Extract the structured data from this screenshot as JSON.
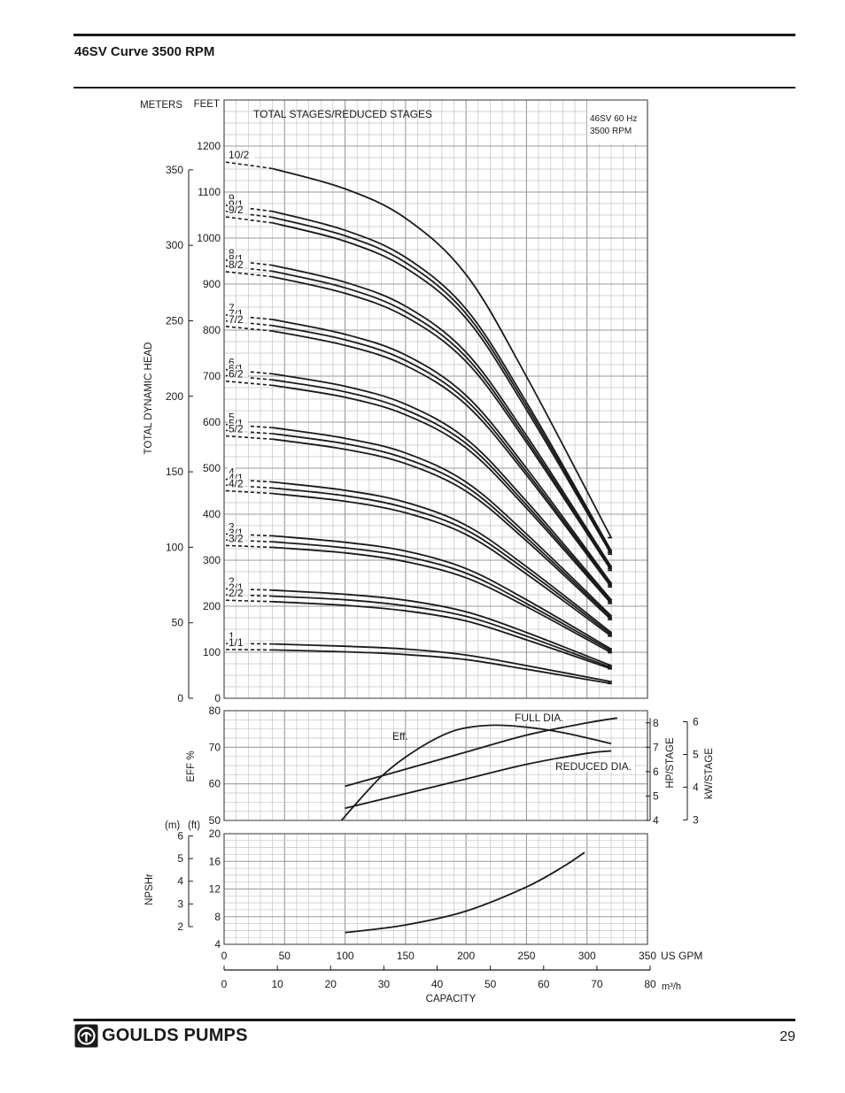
{
  "page": {
    "title": "46SV Curve 3500 RPM",
    "page_number": "29",
    "brand": "GOULDS PUMPS"
  },
  "chart_data": [
    {
      "name": "head",
      "type": "line",
      "title_box": [
        "46SV  60 Hz",
        "3500 RPM"
      ],
      "legend_title": "TOTAL STAGES/REDUCED STAGES",
      "ylabel": "TOTAL DYNAMIC HEAD",
      "unit_left": "METERS",
      "unit_right": "FEET",
      "ft_range": [
        0,
        1300
      ],
      "ft_ticks": [
        "0",
        "100",
        "200",
        "300",
        "400",
        "500",
        "600",
        "700",
        "800",
        "900",
        "1000",
        "1100",
        "1200"
      ],
      "m_ticks": [
        "0",
        "50",
        "100",
        "150",
        "200",
        "250",
        "300",
        "350"
      ],
      "grid": true,
      "shutoff_ft_per_stage": 119,
      "reduced_drop_ft": [
        13,
        25
      ],
      "curve_x_gpm": [
        40,
        100,
        150,
        200,
        250,
        320
      ],
      "curve_fraction_of_shutoff": [
        0.988,
        0.95,
        0.895,
        0.79,
        0.6,
        0.3
      ],
      "series": [
        {
          "label": "1",
          "stages": 1,
          "reduced": 0,
          "x": [
            40,
            100,
            150,
            200,
            250,
            320
          ],
          "y": [
            118,
            113,
            107,
            94,
            71,
            36
          ]
        },
        {
          "label": "1/1",
          "stages": 1,
          "reduced": 1,
          "x": [
            40,
            100,
            150,
            200,
            250,
            320
          ],
          "y": [
            105,
            101,
            95,
            84,
            63,
            32
          ]
        },
        {
          "label": "2",
          "stages": 2,
          "reduced": 0,
          "x": [
            40,
            100,
            150,
            200,
            250,
            320
          ],
          "y": [
            235,
            226,
            213,
            188,
            143,
            71
          ]
        },
        {
          "label": "2/1",
          "stages": 2,
          "reduced": 1,
          "x": [
            40,
            100,
            150,
            200,
            250,
            320
          ],
          "y": [
            222,
            214,
            201,
            178,
            135,
            67
          ]
        },
        {
          "label": "2/2",
          "stages": 2,
          "reduced": 2,
          "x": [
            40,
            100,
            150,
            200,
            250,
            320
          ],
          "y": [
            210,
            202,
            190,
            168,
            127,
            64
          ]
        },
        {
          "label": "3",
          "stages": 3,
          "reduced": 0,
          "x": [
            40,
            100,
            150,
            200,
            250,
            320
          ],
          "y": [
            353,
            339,
            320,
            282,
            214,
            107
          ]
        },
        {
          "label": "3/1",
          "stages": 3,
          "reduced": 1,
          "x": [
            40,
            100,
            150,
            200,
            250,
            320
          ],
          "y": [
            340,
            327,
            308,
            272,
            206,
            103
          ]
        },
        {
          "label": "3/2",
          "stages": 3,
          "reduced": 2,
          "x": [
            40,
            100,
            150,
            200,
            250,
            320
          ],
          "y": [
            328,
            316,
            297,
            262,
            199,
            99
          ]
        },
        {
          "label": "4",
          "stages": 4,
          "reduced": 0,
          "x": [
            40,
            100,
            150,
            200,
            250,
            320
          ],
          "y": [
            470,
            452,
            426,
            376,
            286,
            143
          ]
        },
        {
          "label": "4/1",
          "stages": 4,
          "reduced": 1,
          "x": [
            40,
            100,
            150,
            200,
            250,
            320
          ],
          "y": [
            457,
            440,
            414,
            366,
            278,
            139
          ]
        },
        {
          "label": "4/2",
          "stages": 4,
          "reduced": 2,
          "x": [
            40,
            100,
            150,
            200,
            250,
            320
          ],
          "y": [
            445,
            428,
            403,
            356,
            270,
            135
          ]
        },
        {
          "label": "5",
          "stages": 5,
          "reduced": 0,
          "x": [
            40,
            100,
            150,
            200,
            250,
            320
          ],
          "y": [
            588,
            565,
            533,
            470,
            357,
            179
          ]
        },
        {
          "label": "5/1",
          "stages": 5,
          "reduced": 1,
          "x": [
            40,
            100,
            150,
            200,
            250,
            320
          ],
          "y": [
            575,
            553,
            521,
            460,
            349,
            175
          ]
        },
        {
          "label": "5/2",
          "stages": 5,
          "reduced": 2,
          "x": [
            40,
            100,
            150,
            200,
            250,
            320
          ],
          "y": [
            563,
            541,
            510,
            450,
            342,
            171
          ]
        },
        {
          "label": "6",
          "stages": 6,
          "reduced": 0,
          "x": [
            40,
            100,
            150,
            200,
            250,
            320
          ],
          "y": [
            705,
            678,
            639,
            564,
            428,
            214
          ]
        },
        {
          "label": "6/1",
          "stages": 6,
          "reduced": 1,
          "x": [
            40,
            100,
            150,
            200,
            250,
            320
          ],
          "y": [
            692,
            666,
            627,
            554,
            420,
            210
          ]
        },
        {
          "label": "6/2",
          "stages": 6,
          "reduced": 2,
          "x": [
            40,
            100,
            150,
            200,
            250,
            320
          ],
          "y": [
            680,
            654,
            616,
            544,
            413,
            206
          ]
        },
        {
          "label": "7",
          "stages": 7,
          "reduced": 0,
          "x": [
            40,
            100,
            150,
            200,
            250,
            320
          ],
          "y": [
            823,
            791,
            746,
            658,
            500,
            250
          ]
        },
        {
          "label": "7/1",
          "stages": 7,
          "reduced": 1,
          "x": [
            40,
            100,
            150,
            200,
            250,
            320
          ],
          "y": [
            810,
            779,
            734,
            648,
            492,
            246
          ]
        },
        {
          "label": "7/2",
          "stages": 7,
          "reduced": 2,
          "x": [
            40,
            100,
            150,
            200,
            250,
            320
          ],
          "y": [
            798,
            767,
            723,
            638,
            485,
            242
          ]
        },
        {
          "label": "8",
          "stages": 8,
          "reduced": 0,
          "x": [
            40,
            100,
            150,
            200,
            250,
            320
          ],
          "y": [
            941,
            904,
            852,
            752,
            571,
            286
          ]
        },
        {
          "label": "8/1",
          "stages": 8,
          "reduced": 1,
          "x": [
            40,
            100,
            150,
            200,
            250,
            320
          ],
          "y": [
            928,
            892,
            840,
            742,
            563,
            282
          ]
        },
        {
          "label": "8/2",
          "stages": 8,
          "reduced": 2,
          "x": [
            40,
            100,
            150,
            200,
            250,
            320
          ],
          "y": [
            916,
            880,
            829,
            732,
            556,
            278
          ]
        },
        {
          "label": "9",
          "stages": 9,
          "reduced": 0,
          "x": [
            40,
            100,
            150,
            200,
            250,
            320
          ],
          "y": [
            1058,
            1017,
            958,
            846,
            643,
            321
          ]
        },
        {
          "label": "9/1",
          "stages": 9,
          "reduced": 1,
          "x": [
            40,
            100,
            150,
            200,
            250,
            320
          ],
          "y": [
            1045,
            1005,
            947,
            836,
            635,
            317
          ]
        },
        {
          "label": "9/2",
          "stages": 9,
          "reduced": 2,
          "x": [
            40,
            100,
            150,
            200,
            250,
            320
          ],
          "y": [
            1033,
            993,
            935,
            826,
            627,
            313
          ]
        },
        {
          "label": "10/2",
          "stages": 10,
          "reduced": 2,
          "x": [
            40,
            100,
            150,
            200,
            250,
            320
          ],
          "y": [
            1151,
            1107,
            1043,
            921,
            699,
            349
          ]
        }
      ]
    },
    {
      "name": "efficiency_power",
      "type": "line",
      "ylabel_left": "EFF %",
      "ylabel_hp": "HP/STAGE",
      "ylabel_kw": "kW/STAGE",
      "eff_range": [
        50,
        80
      ],
      "eff_ticks": [
        "50",
        "60",
        "70",
        "80"
      ],
      "hp_range": [
        4,
        8.5
      ],
      "hp_ticks": [
        "4",
        "5",
        "6",
        "7",
        "8"
      ],
      "kw_ticks": [
        "3",
        "4",
        "5",
        "6"
      ],
      "grid": true,
      "series": [
        {
          "name": "Eff.",
          "x": [
            97,
            130,
            160,
            190,
            220,
            250,
            280,
            320
          ],
          "y": [
            50,
            62,
            69.5,
            74.5,
            76,
            75.5,
            74,
            71
          ]
        },
        {
          "name": "FULL DIA.",
          "x": [
            100,
            150,
            200,
            250,
            300,
            325
          ],
          "y": [
            5.4,
            6.1,
            6.8,
            7.5,
            8.0,
            8.2
          ]
        },
        {
          "name": "REDUCED DIA.",
          "x": [
            100,
            150,
            200,
            250,
            300,
            320
          ],
          "y": [
            4.5,
            5.1,
            5.7,
            6.3,
            6.75,
            6.85
          ]
        }
      ]
    },
    {
      "name": "npshr",
      "type": "line",
      "ylabel": "NPSHr",
      "unit_left": "(m)",
      "unit_right": "(ft)",
      "ft_range": [
        4,
        20
      ],
      "ft_ticks": [
        "4",
        "8",
        "12",
        "16",
        "20"
      ],
      "m_ticks": [
        "2",
        "3",
        "4",
        "5",
        "6"
      ],
      "grid": true,
      "series": [
        {
          "name": "NPSHr",
          "x": [
            100,
            150,
            200,
            250,
            280,
            298
          ],
          "y": [
            5.7,
            6.8,
            8.8,
            12.3,
            15.2,
            17.3
          ]
        }
      ]
    }
  ],
  "axes": {
    "x_gpm_ticks": [
      "0",
      "50",
      "100",
      "150",
      "200",
      "250",
      "300",
      "350"
    ],
    "x_gpm_range": [
      0,
      350
    ],
    "x_gpm_unit": "US GPM",
    "x_m3h_ticks": [
      "0",
      "10",
      "20",
      "30",
      "40",
      "50",
      "60",
      "70",
      "80"
    ],
    "x_m3h_range": [
      0,
      80
    ],
    "x_m3h_unit": "m³/h",
    "x_label": "CAPACITY"
  },
  "colors": {
    "line": "#1a1a1a",
    "grid": "#9a9a9a",
    "grid_minor": "#c4c4c4",
    "background": "#ffffff"
  }
}
